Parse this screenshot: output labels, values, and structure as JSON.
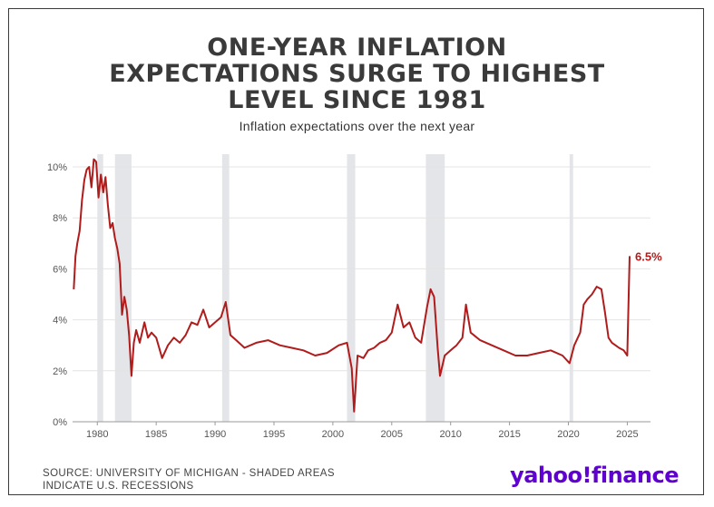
{
  "header": {
    "title_lines": [
      "ONE-YEAR INFLATION",
      "EXPECTATIONS SURGE TO HIGHEST",
      "LEVEL SINCE 1981"
    ],
    "subtitle": "Inflation expectations over the next year"
  },
  "footer": {
    "source_lines": [
      "SOURCE: UNIVERSITY OF MICHIGAN - SHADED AREAS",
      "INDICATE U.S. RECESSIONS"
    ],
    "logo_main": "yahoo!",
    "logo_suffix": "finance"
  },
  "colors": {
    "line": "#b01c1c",
    "recession": "#e3e5e8",
    "grid": "#e4e4e4",
    "text": "#3a3a3a",
    "logo": "#5f01d1"
  },
  "chart_data": {
    "type": "line",
    "title": "ONE-YEAR INFLATION EXPECTATIONS SURGE TO HIGHEST LEVEL SINCE 1981",
    "subtitle": "Inflation expectations over the next year",
    "xlabel": "",
    "ylabel": "",
    "xlim": [
      1977.9,
      2026.2
    ],
    "ylim": [
      0,
      10.5
    ],
    "grid": true,
    "x_ticks": [
      1980,
      1985,
      1990,
      1995,
      2000,
      2005,
      2010,
      2015,
      2020,
      2025
    ],
    "y_ticks": [
      0,
      2,
      4,
      6,
      8,
      10
    ],
    "y_tick_labels": [
      "0%",
      "2%",
      "4%",
      "6%",
      "8%",
      "10%"
    ],
    "recessions": [
      [
        1980.0,
        1980.5
      ],
      [
        1981.5,
        1982.9
      ],
      [
        1990.6,
        1991.2
      ],
      [
        2001.2,
        2001.9
      ],
      [
        2007.9,
        2009.5
      ],
      [
        2020.1,
        2020.4
      ]
    ],
    "end_label": "6.5%",
    "series": [
      {
        "x": [
          1978.0,
          1978.15,
          1978.3,
          1978.5,
          1978.7,
          1978.9,
          1979.1,
          1979.3,
          1979.5,
          1979.7,
          1979.9,
          1980.1,
          1980.3,
          1980.5,
          1980.7,
          1980.9,
          1981.1,
          1981.3,
          1981.5,
          1981.7,
          1981.9,
          1982.1,
          1982.3,
          1982.5,
          1982.7,
          1982.9,
          1983.1,
          1983.3,
          1983.6,
          1984.0,
          1984.3,
          1984.6,
          1985.0,
          1985.5,
          1986.0,
          1986.5,
          1987.0,
          1987.5,
          1988.0,
          1988.5,
          1989.0,
          1989.5,
          1990.0,
          1990.5,
          1990.9,
          1991.3,
          1991.8,
          1992.5,
          1993.5,
          1994.5,
          1995.5,
          1996.5,
          1997.5,
          1998.5,
          1999.5,
          2000.5,
          2001.2,
          2001.6,
          2001.8,
          2002.1,
          2002.6,
          2003.0,
          2003.5,
          2004.0,
          2004.5,
          2005.0,
          2005.5,
          2006.0,
          2006.5,
          2007.0,
          2007.5,
          2008.0,
          2008.3,
          2008.6,
          2008.9,
          2009.1,
          2009.5,
          2010.0,
          2010.5,
          2011.0,
          2011.3,
          2011.7,
          2012.5,
          2013.5,
          2014.5,
          2015.5,
          2016.5,
          2017.5,
          2018.5,
          2019.5,
          2020.1,
          2020.5,
          2021.0,
          2021.3,
          2021.6,
          2022.0,
          2022.4,
          2022.8,
          2023.1,
          2023.4,
          2023.7,
          2024.0,
          2024.3,
          2024.7,
          2025.0,
          2025.2
        ],
        "y": [
          5.2,
          6.5,
          7.0,
          7.5,
          8.7,
          9.5,
          9.9,
          10.0,
          9.2,
          10.3,
          10.2,
          8.8,
          9.7,
          9.0,
          9.6,
          8.5,
          7.6,
          7.8,
          7.2,
          6.8,
          6.2,
          4.2,
          4.9,
          4.4,
          3.4,
          1.8,
          3.1,
          3.6,
          3.1,
          3.9,
          3.3,
          3.5,
          3.3,
          2.5,
          3.0,
          3.3,
          3.1,
          3.4,
          3.9,
          3.8,
          4.4,
          3.7,
          3.9,
          4.1,
          4.7,
          3.4,
          3.2,
          2.9,
          3.1,
          3.2,
          3.0,
          2.9,
          2.8,
          2.6,
          2.7,
          3.0,
          3.1,
          2.1,
          0.4,
          2.6,
          2.5,
          2.8,
          2.9,
          3.1,
          3.2,
          3.5,
          4.6,
          3.7,
          3.9,
          3.3,
          3.1,
          4.5,
          5.2,
          4.9,
          2.9,
          1.8,
          2.6,
          2.8,
          3.0,
          3.3,
          4.6,
          3.5,
          3.2,
          3.0,
          2.8,
          2.6,
          2.6,
          2.7,
          2.8,
          2.6,
          2.3,
          3.0,
          3.5,
          4.6,
          4.8,
          5.0,
          5.3,
          5.2,
          4.3,
          3.3,
          3.1,
          3.0,
          2.9,
          2.8,
          2.6,
          6.5
        ]
      }
    ]
  }
}
